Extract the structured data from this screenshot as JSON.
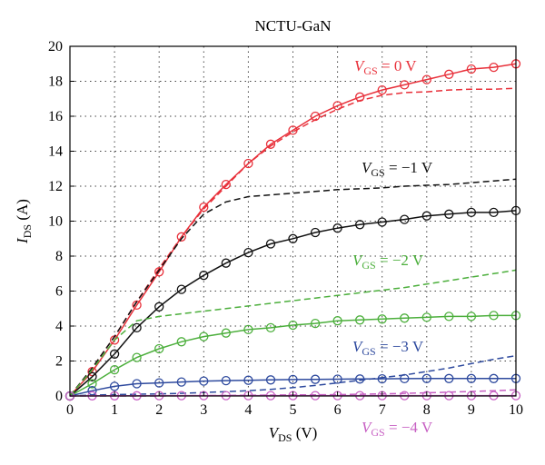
{
  "chart_data": {
    "type": "line",
    "title": "NCTU-GaN",
    "xlabel": {
      "main": "V",
      "sub": "DS",
      "unit": " (V)"
    },
    "ylabel": {
      "main": "I",
      "sub": "DS",
      "unit": " (A)"
    },
    "xlim": [
      0,
      10
    ],
    "ylim": [
      0,
      20
    ],
    "xticks": [
      0,
      1,
      2,
      3,
      4,
      5,
      6,
      7,
      8,
      9,
      10
    ],
    "yticks": [
      0,
      2,
      4,
      6,
      8,
      10,
      12,
      14,
      16,
      18,
      20
    ],
    "grid": true,
    "series": [
      {
        "key": "vgs0",
        "color": "#e8303a",
        "label": {
          "main": "V",
          "sub": "GS",
          "rest": " = 0 V"
        },
        "measured": {
          "x": [
            0,
            0.5,
            1,
            1.5,
            2,
            2.5,
            3,
            3.5,
            4,
            4.5,
            5,
            5.5,
            6,
            6.5,
            7,
            7.5,
            8,
            8.5,
            9,
            9.5,
            10
          ],
          "y": [
            0,
            1.4,
            3.2,
            5.2,
            7.1,
            9.1,
            10.8,
            12.1,
            13.3,
            14.4,
            15.2,
            16.0,
            16.6,
            17.1,
            17.5,
            17.8,
            18.1,
            18.4,
            18.7,
            18.8,
            19.0
          ]
        },
        "simulated": {
          "x": [
            0,
            0.5,
            1,
            1.5,
            2,
            2.5,
            3,
            3.5,
            4,
            4.5,
            5,
            5.5,
            6,
            6.5,
            7,
            7.5,
            8,
            8.5,
            9,
            9.5,
            10
          ],
          "y": [
            0,
            1.6,
            3.4,
            5.4,
            7.3,
            9.1,
            10.7,
            12.0,
            13.3,
            14.3,
            15.1,
            15.8,
            16.4,
            16.9,
            17.2,
            17.35,
            17.4,
            17.5,
            17.55,
            17.55,
            17.6
          ]
        }
      },
      {
        "key": "vgs1",
        "color": "#111111",
        "label": {
          "main": "V",
          "sub": "GS",
          "rest": " = −1 V"
        },
        "measured": {
          "x": [
            0,
            0.5,
            1,
            1.5,
            2,
            2.5,
            3,
            3.5,
            4,
            4.5,
            5,
            5.5,
            6,
            6.5,
            7,
            7.5,
            8,
            8.5,
            9,
            9.5,
            10
          ],
          "y": [
            0,
            1.1,
            2.4,
            3.9,
            5.1,
            6.1,
            6.9,
            7.6,
            8.2,
            8.7,
            9.0,
            9.35,
            9.6,
            9.8,
            9.95,
            10.1,
            10.3,
            10.4,
            10.5,
            10.5,
            10.6
          ]
        },
        "simulated": {
          "x": [
            0,
            0.5,
            1,
            1.5,
            2,
            2.5,
            3,
            3.5,
            4,
            4.5,
            5,
            5.5,
            6,
            6.5,
            7,
            7.5,
            8,
            8.5,
            9,
            9.5,
            10
          ],
          "y": [
            0,
            1.6,
            3.4,
            5.4,
            7.2,
            9.0,
            10.4,
            11.1,
            11.4,
            11.5,
            11.6,
            11.7,
            11.8,
            11.85,
            11.9,
            12.0,
            12.05,
            12.1,
            12.2,
            12.3,
            12.4
          ]
        }
      },
      {
        "key": "vgs2",
        "color": "#4caf3c",
        "label": {
          "main": "V",
          "sub": "GS",
          "rest": " = −2 V"
        },
        "measured": {
          "x": [
            0,
            0.5,
            1,
            1.5,
            2,
            2.5,
            3,
            3.5,
            4,
            4.5,
            5,
            5.5,
            6,
            6.5,
            7,
            7.5,
            8,
            8.5,
            9,
            9.5,
            10
          ],
          "y": [
            0,
            0.7,
            1.5,
            2.2,
            2.7,
            3.1,
            3.4,
            3.6,
            3.8,
            3.9,
            4.05,
            4.15,
            4.3,
            4.35,
            4.4,
            4.45,
            4.5,
            4.55,
            4.55,
            4.6,
            4.6
          ]
        },
        "simulated": {
          "x": [
            0,
            0.5,
            1,
            1.5,
            2,
            2.5,
            3,
            3.5,
            4,
            4.5,
            5,
            5.5,
            6,
            6.5,
            7,
            7.5,
            8,
            8.5,
            9,
            9.5,
            10
          ],
          "y": [
            0,
            1.5,
            3.2,
            4.3,
            4.55,
            4.7,
            4.85,
            5.0,
            5.15,
            5.3,
            5.45,
            5.6,
            5.75,
            5.9,
            6.05,
            6.2,
            6.4,
            6.6,
            6.8,
            7.0,
            7.2
          ]
        }
      },
      {
        "key": "vgs3",
        "color": "#2e4a9e",
        "label": {
          "main": "V",
          "sub": "GS",
          "rest": " = −3 V"
        },
        "measured": {
          "x": [
            0,
            0.5,
            1,
            1.5,
            2,
            2.5,
            3,
            3.5,
            4,
            4.5,
            5,
            5.5,
            6,
            6.5,
            7,
            7.5,
            8,
            8.5,
            9,
            9.5,
            10
          ],
          "y": [
            0,
            0.3,
            0.55,
            0.7,
            0.75,
            0.8,
            0.85,
            0.88,
            0.9,
            0.92,
            0.94,
            0.95,
            0.96,
            0.97,
            0.98,
            0.99,
            1.0,
            1.0,
            1.0,
            1.0,
            1.0
          ]
        },
        "simulated": {
          "x": [
            0,
            0.5,
            1,
            1.5,
            2,
            2.5,
            3,
            3.5,
            4,
            4.5,
            5,
            5.5,
            6,
            6.5,
            7,
            7.5,
            8,
            8.5,
            9,
            9.5,
            10
          ],
          "y": [
            0,
            0.05,
            0.08,
            0.1,
            0.12,
            0.15,
            0.2,
            0.25,
            0.3,
            0.38,
            0.48,
            0.6,
            0.75,
            0.9,
            1.05,
            1.2,
            1.4,
            1.6,
            1.85,
            2.1,
            2.3
          ]
        }
      },
      {
        "key": "vgs4",
        "color": "#c760c3",
        "label": {
          "main": "V",
          "sub": "GS",
          "rest": " = −4 V"
        },
        "measured": {
          "x": [
            0,
            0.5,
            1,
            1.5,
            2,
            2.5,
            3,
            3.5,
            4,
            4.5,
            5,
            5.5,
            6,
            6.5,
            7,
            7.5,
            8,
            8.5,
            9,
            9.5,
            10
          ],
          "y": [
            0,
            0.01,
            0.01,
            0.01,
            0.02,
            0.02,
            0.02,
            0.02,
            0.02,
            0.02,
            0.02,
            0.02,
            0.02,
            0.02,
            0.02,
            0.02,
            0.02,
            0.02,
            0.02,
            0.02,
            0.02
          ]
        },
        "simulated": {
          "x": [
            0,
            0.5,
            1,
            1.5,
            2,
            2.5,
            3,
            3.5,
            4,
            4.5,
            5,
            5.5,
            6,
            6.5,
            7,
            7.5,
            8,
            8.5,
            9,
            9.5,
            10
          ],
          "y": [
            0,
            0.0,
            0.0,
            0.0,
            0.0,
            0.01,
            0.02,
            0.03,
            0.04,
            0.05,
            0.06,
            0.07,
            0.08,
            0.1,
            0.12,
            0.15,
            0.18,
            0.22,
            0.26,
            0.3,
            0.35
          ]
        }
      }
    ]
  }
}
